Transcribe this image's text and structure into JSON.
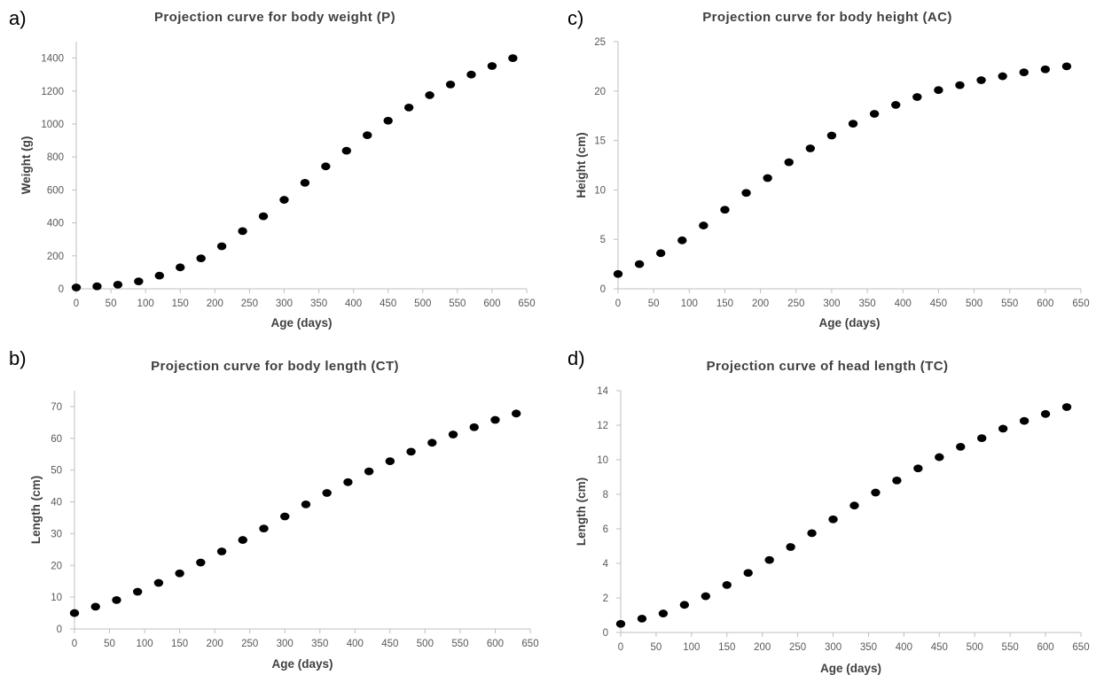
{
  "panel_letters": [
    "a)",
    "c)",
    "b)",
    "d)"
  ],
  "chart_data": [
    {
      "type": "scatter",
      "panel": "a)",
      "title": "Projection curve for body weight (P)",
      "xlabel": "Age (days)",
      "ylabel": "Weight (g)",
      "xlim": [
        0,
        650
      ],
      "ylim": [
        0,
        1500
      ],
      "xticks": [
        0,
        50,
        100,
        150,
        200,
        250,
        300,
        350,
        400,
        450,
        500,
        550,
        600,
        650
      ],
      "yticks": [
        0,
        200,
        400,
        600,
        800,
        1000,
        1200,
        1400
      ],
      "grid": false,
      "marker_color": "#000000",
      "series": [
        {
          "x": [
            0,
            30,
            60,
            90,
            120,
            150,
            180,
            210,
            240,
            270,
            300,
            330,
            360,
            390,
            420,
            450,
            480,
            510,
            540,
            570,
            600,
            630
          ],
          "y": [
            8,
            15,
            25,
            45,
            80,
            130,
            185,
            258,
            350,
            440,
            540,
            643,
            743,
            838,
            932,
            1020,
            1100,
            1175,
            1240,
            1300,
            1352,
            1400
          ]
        }
      ]
    },
    {
      "type": "scatter",
      "panel": "c)",
      "title": "Projection curve for body height (AC)",
      "xlabel": "Age (days)",
      "ylabel": "Height (cm)",
      "xlim": [
        0,
        650
      ],
      "ylim": [
        0,
        25
      ],
      "xticks": [
        0,
        50,
        100,
        150,
        200,
        250,
        300,
        350,
        400,
        450,
        500,
        550,
        600,
        650
      ],
      "yticks": [
        0,
        5,
        10,
        15,
        20,
        25
      ],
      "grid": false,
      "marker_color": "#000000",
      "series": [
        {
          "x": [
            0,
            30,
            60,
            90,
            120,
            150,
            180,
            210,
            240,
            270,
            300,
            330,
            360,
            390,
            420,
            450,
            480,
            510,
            540,
            570,
            600,
            630
          ],
          "y": [
            1.5,
            2.5,
            3.6,
            4.9,
            6.4,
            8.0,
            9.7,
            11.2,
            12.8,
            14.2,
            15.5,
            16.7,
            17.7,
            18.6,
            19.4,
            20.1,
            20.6,
            21.1,
            21.5,
            21.9,
            22.2,
            22.5
          ]
        }
      ]
    },
    {
      "type": "scatter",
      "panel": "b)",
      "title": "Projection curve for body length (CT)",
      "xlabel": "Age (days)",
      "ylabel": "Length (cm)",
      "xlim": [
        0,
        650
      ],
      "ylim": [
        0,
        75
      ],
      "xticks": [
        0,
        50,
        100,
        150,
        200,
        250,
        300,
        350,
        400,
        450,
        500,
        550,
        600,
        650
      ],
      "yticks": [
        0,
        10,
        20,
        30,
        40,
        50,
        60,
        70
      ],
      "grid": false,
      "marker_color": "#000000",
      "series": [
        {
          "x": [
            0,
            30,
            60,
            90,
            120,
            150,
            180,
            210,
            240,
            270,
            300,
            330,
            360,
            390,
            420,
            450,
            480,
            510,
            540,
            570,
            600,
            630
          ],
          "y": [
            5.0,
            7.0,
            9.1,
            11.7,
            14.5,
            17.5,
            20.9,
            24.4,
            28.0,
            31.6,
            35.4,
            39.2,
            42.8,
            46.2,
            49.6,
            52.8,
            55.8,
            58.6,
            61.2,
            63.5,
            65.8,
            67.8
          ]
        }
      ]
    },
    {
      "type": "scatter",
      "panel": "d)",
      "title": "Projection curve of head length (TC)",
      "xlabel": "Age (days)",
      "ylabel": "Length (cm)",
      "xlim": [
        0,
        650
      ],
      "ylim": [
        0,
        14
      ],
      "xticks": [
        0,
        50,
        100,
        150,
        200,
        250,
        300,
        350,
        400,
        450,
        500,
        550,
        600,
        650
      ],
      "yticks": [
        0,
        2,
        4,
        6,
        8,
        10,
        12,
        14
      ],
      "grid": false,
      "marker_color": "#000000",
      "series": [
        {
          "x": [
            0,
            30,
            60,
            90,
            120,
            150,
            180,
            210,
            240,
            270,
            300,
            330,
            360,
            390,
            420,
            450,
            480,
            510,
            540,
            570,
            600,
            630
          ],
          "y": [
            0.5,
            0.8,
            1.1,
            1.6,
            2.1,
            2.75,
            3.45,
            4.2,
            4.95,
            5.75,
            6.55,
            7.35,
            8.1,
            8.8,
            9.5,
            10.15,
            10.75,
            11.25,
            11.8,
            12.25,
            12.65,
            13.05
          ]
        }
      ]
    }
  ]
}
